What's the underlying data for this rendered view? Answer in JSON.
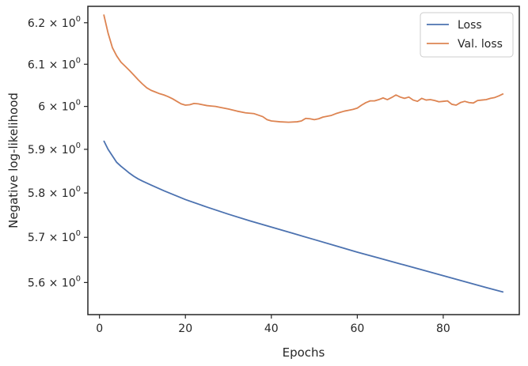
{
  "chart_data": {
    "type": "line",
    "title": "",
    "xlabel": "Epochs",
    "ylabel": "Negative log-likelihood",
    "yscale": "log",
    "xlim": [
      -2.7,
      97.7
    ],
    "ylim": [
      5.53,
      6.24
    ],
    "x_ticks": [
      0,
      20,
      40,
      60,
      80
    ],
    "x_tick_labels": [
      "0",
      "20",
      "40",
      "60",
      "80"
    ],
    "y_ticks": [
      5.6,
      5.7,
      5.8,
      5.9,
      6.0,
      6.1,
      6.2
    ],
    "y_tick_labels": [
      {
        "base": "5.6",
        "sep": " × ",
        "mant": "10",
        "exp": "0"
      },
      {
        "base": "5.7",
        "sep": " × ",
        "mant": "10",
        "exp": "0"
      },
      {
        "base": "5.8",
        "sep": " × ",
        "mant": "10",
        "exp": "0"
      },
      {
        "base": "5.9",
        "sep": " × ",
        "mant": "10",
        "exp": "0"
      },
      {
        "base": "6",
        "sep": " × ",
        "mant": "10",
        "exp": "0"
      },
      {
        "base": "6.1",
        "sep": " × ",
        "mant": "10",
        "exp": "0"
      },
      {
        "base": "6.2",
        "sep": " × ",
        "mant": "10",
        "exp": "0"
      }
    ],
    "grid": false,
    "legend_position": "top-right",
    "series": [
      {
        "name": "Loss",
        "color": "#4c72b0",
        "points": [
          [
            1,
            5.92
          ],
          [
            2,
            5.9
          ],
          [
            3,
            5.885
          ],
          [
            4,
            5.87
          ],
          [
            5,
            5.861
          ],
          [
            6,
            5.853
          ],
          [
            7,
            5.845
          ],
          [
            8,
            5.838
          ],
          [
            9,
            5.832
          ],
          [
            10,
            5.827
          ],
          [
            12,
            5.818
          ],
          [
            15,
            5.805
          ],
          [
            20,
            5.785
          ],
          [
            25,
            5.768
          ],
          [
            30,
            5.752
          ],
          [
            35,
            5.737
          ],
          [
            40,
            5.723
          ],
          [
            45,
            5.709
          ],
          [
            50,
            5.695
          ],
          [
            55,
            5.681
          ],
          [
            60,
            5.667
          ],
          [
            65,
            5.654
          ],
          [
            70,
            5.641
          ],
          [
            75,
            5.628
          ],
          [
            80,
            5.615
          ],
          [
            85,
            5.602
          ],
          [
            90,
            5.589
          ],
          [
            94,
            5.579
          ]
        ]
      },
      {
        "name": "Val. loss",
        "color": "#dd8452",
        "points": [
          [
            1,
            6.22
          ],
          [
            2,
            6.175
          ],
          [
            3,
            6.14
          ],
          [
            4,
            6.12
          ],
          [
            5,
            6.105
          ],
          [
            6,
            6.095
          ],
          [
            7,
            6.085
          ],
          [
            8,
            6.074
          ],
          [
            9,
            6.063
          ],
          [
            10,
            6.053
          ],
          [
            11,
            6.044
          ],
          [
            12,
            6.038
          ],
          [
            13,
            6.034
          ],
          [
            14,
            6.03
          ],
          [
            15,
            6.027
          ],
          [
            16,
            6.023
          ],
          [
            17,
            6.018
          ],
          [
            18,
            6.012
          ],
          [
            19,
            6.006
          ],
          [
            20,
            6.003
          ],
          [
            21,
            6.004
          ],
          [
            22,
            6.007
          ],
          [
            23,
            6.006
          ],
          [
            24,
            6.004
          ],
          [
            25,
            6.002
          ],
          [
            26,
            6.001
          ],
          [
            27,
            6.0
          ],
          [
            28,
            5.998
          ],
          [
            30,
            5.994
          ],
          [
            32,
            5.989
          ],
          [
            34,
            5.985
          ],
          [
            36,
            5.983
          ],
          [
            38,
            5.976
          ],
          [
            39,
            5.969
          ],
          [
            40,
            5.966
          ],
          [
            42,
            5.964
          ],
          [
            44,
            5.963
          ],
          [
            46,
            5.964
          ],
          [
            47,
            5.966
          ],
          [
            48,
            5.972
          ],
          [
            49,
            5.971
          ],
          [
            50,
            5.969
          ],
          [
            51,
            5.971
          ],
          [
            52,
            5.975
          ],
          [
            54,
            5.979
          ],
          [
            55,
            5.983
          ],
          [
            56,
            5.986
          ],
          [
            57,
            5.989
          ],
          [
            58,
            5.991
          ],
          [
            59,
            5.993
          ],
          [
            60,
            5.996
          ],
          [
            61,
            6.003
          ],
          [
            62,
            6.009
          ],
          [
            63,
            6.013
          ],
          [
            64,
            6.013
          ],
          [
            65,
            6.016
          ],
          [
            66,
            6.02
          ],
          [
            67,
            6.016
          ],
          [
            68,
            6.021
          ],
          [
            69,
            6.027
          ],
          [
            70,
            6.022
          ],
          [
            71,
            6.019
          ],
          [
            72,
            6.022
          ],
          [
            73,
            6.015
          ],
          [
            74,
            6.012
          ],
          [
            75,
            6.019
          ],
          [
            76,
            6.015
          ],
          [
            77,
            6.016
          ],
          [
            78,
            6.014
          ],
          [
            79,
            6.011
          ],
          [
            80,
            6.012
          ],
          [
            81,
            6.013
          ],
          [
            82,
            6.005
          ],
          [
            83,
            6.003
          ],
          [
            84,
            6.009
          ],
          [
            85,
            6.012
          ],
          [
            86,
            6.009
          ],
          [
            87,
            6.008
          ],
          [
            88,
            6.014
          ],
          [
            89,
            6.015
          ],
          [
            90,
            6.016
          ],
          [
            91,
            6.019
          ],
          [
            92,
            6.021
          ],
          [
            93,
            6.025
          ],
          [
            94,
            6.03
          ]
        ]
      }
    ]
  }
}
